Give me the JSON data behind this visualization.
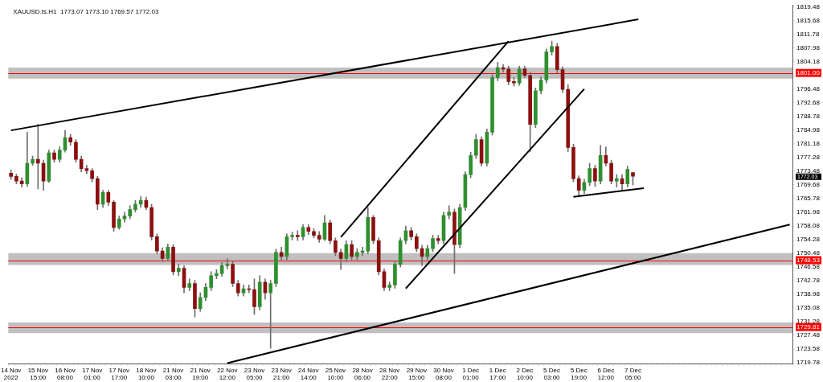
{
  "chart_data": {
    "type": "candlestick",
    "title": "XAUUSD.ts.H1  1773.07 1773.10 1769.57 1772.03",
    "categories": [
      "14 Nov 2022",
      null,
      null,
      null,
      null,
      "15 Nov 15:00",
      null,
      null,
      null,
      null,
      "16 Nov 08:00",
      null,
      null,
      null,
      null,
      "17 Nov 01:00",
      null,
      null,
      null,
      null,
      "17 Nov 17:00",
      null,
      null,
      null,
      null,
      "18 Nov 10:00",
      null,
      null,
      null,
      null,
      "21 Nov 03:00",
      null,
      null,
      null,
      null,
      "21 Nov 19:00",
      null,
      null,
      null,
      null,
      "22 Nov 12:00",
      null,
      null,
      null,
      null,
      "23 Nov 05:00",
      null,
      null,
      null,
      null,
      "23 Nov 21:00",
      null,
      null,
      null,
      null,
      "24 Nov 14:00",
      null,
      null,
      null,
      null,
      "25 Nov 10:00",
      null,
      null,
      null,
      null,
      "28 Nov 06:00",
      null,
      null,
      null,
      null,
      "28 Nov 22:00",
      null,
      null,
      null,
      null,
      "29 Nov 15:00",
      null,
      null,
      null,
      null,
      "30 Nov 08:00",
      null,
      null,
      null,
      null,
      "1 Dec 01:00",
      null,
      null,
      null,
      null,
      "1 Dec 17:00",
      null,
      null,
      null,
      null,
      "2 Dec 10:00",
      null,
      null,
      null,
      null,
      "5 Dec 03:00",
      null,
      null,
      null,
      null,
      "5 Dec 19:00",
      null,
      null,
      null,
      null,
      "6 Dec 12:00",
      null,
      null,
      null,
      null,
      "7 Dec 05:00",
      null,
      null,
      null,
      null,
      null,
      null,
      null,
      null,
      null,
      null,
      null,
      null,
      null,
      null,
      null,
      null,
      null,
      null,
      null,
      null,
      null,
      null,
      null,
      null,
      null,
      null,
      null,
      null,
      null
    ],
    "ohlc": [
      [
        1772.9,
        1773.8,
        1771.2,
        1772.0
      ],
      [
        1772.0,
        1772.7,
        1769.9,
        1770.7
      ],
      [
        1770.7,
        1771.6,
        1769.0,
        1769.9
      ],
      [
        1769.9,
        1784.4,
        1769.2,
        1775.7
      ],
      [
        1775.7,
        1777.7,
        1775.1,
        1776.8
      ],
      [
        1776.8,
        1786.6,
        1768.5,
        1775.7
      ],
      [
        1775.7,
        1776.6,
        1768.1,
        1770.7
      ],
      [
        1770.7,
        1779.4,
        1770.3,
        1778.6
      ],
      [
        1778.6,
        1779.4,
        1776.0,
        1776.8
      ],
      [
        1776.8,
        1780.3,
        1776.0,
        1779.4
      ],
      [
        1779.4,
        1784.9,
        1778.8,
        1782.9
      ],
      [
        1782.9,
        1783.8,
        1780.7,
        1781.6
      ],
      [
        1781.6,
        1782.3,
        1776.0,
        1776.8
      ],
      [
        1776.8,
        1777.7,
        1773.3,
        1774.2
      ],
      [
        1774.2,
        1775.1,
        1772.7,
        1773.6
      ],
      [
        1773.6,
        1774.2,
        1770.5,
        1771.4
      ],
      [
        1771.4,
        1772.0,
        1762.7,
        1764.2
      ],
      [
        1764.2,
        1768.1,
        1763.3,
        1767.5
      ],
      [
        1767.5,
        1768.1,
        1763.8,
        1764.8
      ],
      [
        1764.8,
        1765.3,
        1756.6,
        1757.7
      ],
      [
        1757.7,
        1760.9,
        1757.2,
        1760.1
      ],
      [
        1760.1,
        1762.0,
        1759.2,
        1760.9
      ],
      [
        1760.9,
        1763.8,
        1760.1,
        1762.7
      ],
      [
        1762.7,
        1765.3,
        1762.0,
        1764.2
      ],
      [
        1764.2,
        1766.4,
        1763.3,
        1765.3
      ],
      [
        1765.3,
        1766.2,
        1762.7,
        1763.3
      ],
      [
        1763.3,
        1764.2,
        1754.2,
        1755.1
      ],
      [
        1755.1,
        1755.9,
        1750.3,
        1751.1
      ],
      [
        1751.1,
        1752.0,
        1748.1,
        1749.0
      ],
      [
        1749.0,
        1753.1,
        1748.3,
        1752.2
      ],
      [
        1752.2,
        1752.9,
        1744.4,
        1745.3
      ],
      [
        1745.3,
        1747.4,
        1744.2,
        1746.3
      ],
      [
        1746.3,
        1747.0,
        1739.4,
        1740.9
      ],
      [
        1740.9,
        1743.3,
        1740.0,
        1742.0
      ],
      [
        1742.0,
        1742.9,
        1732.6,
        1735.0
      ],
      [
        1735.0,
        1739.4,
        1734.2,
        1738.1
      ],
      [
        1738.1,
        1742.0,
        1737.2,
        1740.9
      ],
      [
        1740.9,
        1745.3,
        1740.0,
        1744.2
      ],
      [
        1744.2,
        1745.9,
        1743.3,
        1744.8
      ],
      [
        1744.8,
        1747.9,
        1744.0,
        1747.0
      ],
      [
        1747.0,
        1749.0,
        1746.1,
        1747.4
      ],
      [
        1747.4,
        1748.3,
        1741.1,
        1742.0
      ],
      [
        1742.0,
        1742.9,
        1738.5,
        1739.4
      ],
      [
        1739.4,
        1741.6,
        1738.5,
        1740.5
      ],
      [
        1740.5,
        1741.6,
        1739.4,
        1740.3
      ],
      [
        1740.3,
        1743.3,
        1733.3,
        1735.5
      ],
      [
        1735.5,
        1744.2,
        1734.6,
        1742.4
      ],
      [
        1742.4,
        1743.3,
        1737.6,
        1739.4
      ],
      [
        1739.4,
        1742.9,
        1723.9,
        1742.0
      ],
      [
        1742.0,
        1751.6,
        1741.1,
        1750.7
      ],
      [
        1750.7,
        1752.2,
        1748.7,
        1749.6
      ],
      [
        1749.6,
        1755.9,
        1748.7,
        1755.1
      ],
      [
        1755.1,
        1756.4,
        1754.2,
        1755.5
      ],
      [
        1755.5,
        1756.8,
        1754.0,
        1755.1
      ],
      [
        1755.1,
        1758.5,
        1754.2,
        1757.7
      ],
      [
        1757.7,
        1758.5,
        1755.7,
        1756.6
      ],
      [
        1756.6,
        1757.4,
        1754.8,
        1755.5
      ],
      [
        1755.5,
        1756.6,
        1753.5,
        1754.4
      ],
      [
        1754.4,
        1761.1,
        1754.0,
        1759.0
      ],
      [
        1759.0,
        1759.8,
        1753.1,
        1754.0
      ],
      [
        1754.0,
        1754.8,
        1749.8,
        1750.7
      ],
      [
        1750.7,
        1751.6,
        1745.9,
        1749.0
      ],
      [
        1749.0,
        1754.0,
        1748.1,
        1752.9
      ],
      [
        1752.9,
        1754.0,
        1748.7,
        1749.6
      ],
      [
        1749.6,
        1751.8,
        1748.7,
        1750.7
      ],
      [
        1750.7,
        1752.2,
        1749.8,
        1751.1
      ],
      [
        1751.1,
        1763.3,
        1750.3,
        1760.5
      ],
      [
        1760.5,
        1761.1,
        1753.1,
        1754.0
      ],
      [
        1754.0,
        1754.8,
        1744.4,
        1745.3
      ],
      [
        1745.3,
        1746.1,
        1740.0,
        1740.9
      ],
      [
        1740.9,
        1742.4,
        1740.0,
        1741.6
      ],
      [
        1741.6,
        1748.3,
        1740.7,
        1747.4
      ],
      [
        1747.4,
        1754.8,
        1746.6,
        1754.0
      ],
      [
        1754.0,
        1758.1,
        1753.1,
        1756.8
      ],
      [
        1756.8,
        1757.7,
        1754.2,
        1755.1
      ],
      [
        1755.1,
        1755.9,
        1750.9,
        1751.8
      ],
      [
        1751.8,
        1752.7,
        1747.0,
        1749.6
      ],
      [
        1749.6,
        1752.7,
        1748.7,
        1751.8
      ],
      [
        1751.8,
        1755.5,
        1750.9,
        1754.6
      ],
      [
        1754.6,
        1755.5,
        1753.1,
        1754.0
      ],
      [
        1754.0,
        1762.0,
        1753.1,
        1761.1
      ],
      [
        1761.1,
        1763.8,
        1760.1,
        1762.0
      ],
      [
        1762.0,
        1762.9,
        1744.8,
        1752.9
      ],
      [
        1752.9,
        1764.2,
        1752.0,
        1763.3
      ],
      [
        1763.3,
        1773.3,
        1762.5,
        1772.5
      ],
      [
        1772.5,
        1778.8,
        1771.6,
        1777.9
      ],
      [
        1777.9,
        1783.8,
        1777.0,
        1782.3
      ],
      [
        1782.3,
        1783.1,
        1774.9,
        1775.7
      ],
      [
        1775.7,
        1785.3,
        1774.9,
        1784.4
      ],
      [
        1784.4,
        1800.5,
        1783.6,
        1799.7
      ],
      [
        1799.7,
        1804.0,
        1798.8,
        1802.5
      ],
      [
        1802.5,
        1803.4,
        1801.2,
        1802.1
      ],
      [
        1802.1,
        1802.9,
        1797.7,
        1798.6
      ],
      [
        1798.6,
        1799.7,
        1797.3,
        1798.2
      ],
      [
        1798.2,
        1802.9,
        1797.5,
        1802.1
      ],
      [
        1802.1,
        1802.9,
        1799.7,
        1800.3
      ],
      [
        1800.3,
        1801.2,
        1779.0,
        1786.6
      ],
      [
        1786.6,
        1796.8,
        1785.7,
        1796.0
      ],
      [
        1796.0,
        1799.9,
        1795.1,
        1799.0
      ],
      [
        1799.0,
        1807.7,
        1798.2,
        1806.9
      ],
      [
        1806.9,
        1809.9,
        1806.0,
        1808.4
      ],
      [
        1808.4,
        1809.3,
        1801.0,
        1801.9
      ],
      [
        1801.9,
        1802.7,
        1795.5,
        1796.4
      ],
      [
        1796.4,
        1797.7,
        1779.0,
        1780.1
      ],
      [
        1780.1,
        1781.0,
        1770.5,
        1771.4
      ],
      [
        1771.4,
        1772.2,
        1766.4,
        1768.1
      ],
      [
        1768.1,
        1771.2,
        1767.2,
        1770.3
      ],
      [
        1770.3,
        1775.7,
        1769.4,
        1774.2
      ],
      [
        1774.2,
        1775.1,
        1769.2,
        1770.7
      ],
      [
        1770.7,
        1780.7,
        1769.9,
        1777.9
      ],
      [
        1777.9,
        1780.3,
        1774.9,
        1775.7
      ],
      [
        1775.7,
        1776.6,
        1769.9,
        1770.7
      ],
      [
        1770.7,
        1772.5,
        1769.0,
        1771.4
      ],
      [
        1771.4,
        1772.5,
        1768.1,
        1769.9
      ],
      [
        1769.9,
        1774.9,
        1769.0,
        1774.0
      ],
      [
        1773.07,
        1773.1,
        1769.57,
        1772.03
      ],
      null,
      null,
      null,
      null,
      null,
      null,
      null,
      null,
      null,
      null,
      null,
      null,
      null,
      null,
      null,
      null,
      null,
      null,
      null,
      null,
      null,
      null,
      null,
      null,
      null,
      null,
      null,
      null,
      null
    ],
    "series": [
      {
        "type": "line",
        "color": "#000000",
        "values": [
          1784.9,
          null,
          null,
          null,
          null,
          null,
          null,
          null,
          null,
          null,
          null,
          null,
          null,
          null,
          null,
          null,
          null,
          null,
          null,
          null,
          null,
          null,
          null,
          null,
          null,
          null,
          null,
          null,
          null,
          null,
          null,
          null,
          null,
          null,
          null,
          null,
          null,
          null,
          null,
          null,
          null,
          null,
          null,
          null,
          null,
          null,
          null,
          null,
          null,
          null,
          null,
          null,
          null,
          null,
          null,
          null,
          null,
          null,
          null,
          null,
          null,
          null,
          null,
          null,
          null,
          null,
          null,
          null,
          null,
          null,
          null,
          null,
          null,
          null,
          null,
          null,
          null,
          null,
          null,
          null,
          null,
          null,
          null,
          null,
          null,
          null,
          null,
          null,
          null,
          null,
          null,
          null,
          null,
          null,
          null,
          null,
          null,
          null,
          null,
          null,
          null,
          null,
          null,
          null,
          null,
          null,
          null,
          null,
          null,
          null,
          null,
          null,
          null,
          null,
          null,
          null,
          1816.0,
          null,
          null,
          null,
          null,
          null,
          null,
          null,
          null,
          null,
          null,
          null,
          null,
          null,
          null,
          null,
          null,
          null,
          null,
          null,
          null,
          null,
          null,
          null,
          null,
          null,
          null,
          null,
          null
        ]
      },
      {
        "type": "line",
        "color": "#000000",
        "values": [
          null,
          null,
          null,
          null,
          null,
          null,
          null,
          null,
          null,
          null,
          null,
          null,
          null,
          null,
          null,
          null,
          null,
          null,
          null,
          null,
          null,
          null,
          null,
          null,
          null,
          null,
          null,
          null,
          null,
          null,
          null,
          null,
          null,
          null,
          null,
          null,
          null,
          null,
          null,
          null,
          1719.7,
          null,
          null,
          null,
          null,
          null,
          null,
          null,
          null,
          null,
          null,
          null,
          null,
          null,
          null,
          null,
          null,
          null,
          null,
          null,
          null,
          null,
          null,
          null,
          null,
          null,
          null,
          null,
          null,
          null,
          null,
          null,
          null,
          null,
          null,
          null,
          null,
          null,
          null,
          null,
          null,
          null,
          null,
          null,
          null,
          null,
          null,
          null,
          null,
          null,
          null,
          null,
          null,
          null,
          null,
          null,
          null,
          null,
          null,
          null,
          null,
          null,
          null,
          null,
          null,
          null,
          null,
          null,
          null,
          null,
          null,
          null,
          null,
          null,
          null,
          null,
          null,
          null,
          null,
          null,
          null,
          null,
          null,
          null,
          null,
          null,
          null,
          null,
          null,
          null,
          null,
          null,
          null,
          null,
          null,
          null,
          null,
          null,
          null,
          null,
          null,
          null,
          null,
          null,
          1758.5
        ]
      },
      {
        "type": "line",
        "color": "#000000",
        "values": [
          null,
          null,
          null,
          null,
          null,
          null,
          null,
          null,
          null,
          null,
          null,
          null,
          null,
          null,
          null,
          null,
          null,
          null,
          null,
          null,
          null,
          null,
          null,
          null,
          null,
          null,
          null,
          null,
          null,
          null,
          null,
          null,
          null,
          null,
          null,
          null,
          null,
          null,
          null,
          null,
          null,
          null,
          null,
          null,
          null,
          null,
          null,
          null,
          null,
          null,
          null,
          null,
          null,
          null,
          null,
          null,
          null,
          null,
          null,
          null,
          null,
          1755.0,
          null,
          null,
          null,
          null,
          null,
          null,
          null,
          null,
          null,
          null,
          null,
          null,
          null,
          null,
          null,
          null,
          null,
          null,
          null,
          null,
          null,
          null,
          null,
          null,
          null,
          null,
          null,
          null,
          null,
          null,
          1809.9,
          null,
          null,
          null,
          null,
          null,
          null,
          null,
          null,
          null,
          null,
          null,
          null,
          null,
          null,
          null,
          null,
          null,
          null,
          null,
          null,
          null,
          null,
          null,
          null,
          null,
          null,
          null,
          null,
          null,
          null,
          null,
          null,
          null,
          null,
          null,
          null,
          null,
          null,
          null,
          null,
          null,
          null,
          null,
          null,
          null,
          null,
          null,
          null,
          null,
          null,
          null,
          null
        ]
      },
      {
        "type": "line",
        "color": "#000000",
        "values": [
          null,
          null,
          null,
          null,
          null,
          null,
          null,
          null,
          null,
          null,
          null,
          null,
          null,
          null,
          null,
          null,
          null,
          null,
          null,
          null,
          null,
          null,
          null,
          null,
          null,
          null,
          null,
          null,
          null,
          null,
          null,
          null,
          null,
          null,
          null,
          null,
          null,
          null,
          null,
          null,
          null,
          null,
          null,
          null,
          null,
          null,
          null,
          null,
          null,
          null,
          null,
          null,
          null,
          null,
          null,
          null,
          null,
          null,
          null,
          null,
          null,
          null,
          null,
          null,
          null,
          null,
          null,
          null,
          null,
          null,
          null,
          null,
          null,
          1740.6,
          null,
          null,
          null,
          null,
          null,
          null,
          null,
          null,
          null,
          null,
          null,
          null,
          null,
          null,
          null,
          null,
          null,
          null,
          null,
          null,
          null,
          null,
          null,
          null,
          null,
          null,
          null,
          null,
          null,
          null,
          null,
          null,
          1796.5,
          null,
          null,
          null,
          null,
          null,
          null,
          null,
          null,
          null,
          null,
          null,
          null,
          null,
          null,
          null,
          null,
          null,
          null,
          null,
          null,
          null,
          null,
          null,
          null,
          null,
          null,
          null,
          null,
          null,
          null,
          null,
          null,
          null,
          null,
          null,
          null,
          null,
          null
        ]
      },
      {
        "type": "line",
        "color": "#000000",
        "values": [
          null,
          null,
          null,
          null,
          null,
          null,
          null,
          null,
          null,
          null,
          null,
          null,
          null,
          null,
          null,
          null,
          null,
          null,
          null,
          null,
          null,
          null,
          null,
          null,
          null,
          null,
          null,
          null,
          null,
          null,
          null,
          null,
          null,
          null,
          null,
          null,
          null,
          null,
          null,
          null,
          null,
          null,
          null,
          null,
          null,
          null,
          null,
          null,
          null,
          null,
          null,
          null,
          null,
          null,
          null,
          null,
          null,
          null,
          null,
          null,
          null,
          null,
          null,
          null,
          null,
          null,
          null,
          null,
          null,
          null,
          null,
          null,
          null,
          null,
          null,
          null,
          null,
          null,
          null,
          null,
          null,
          null,
          null,
          null,
          null,
          null,
          null,
          null,
          null,
          null,
          null,
          null,
          null,
          null,
          null,
          null,
          null,
          null,
          null,
          null,
          null,
          null,
          null,
          null,
          1766.3,
          null,
          null,
          null,
          null,
          null,
          null,
          null,
          null,
          null,
          null,
          null,
          null,
          1768.7,
          null,
          null,
          null,
          null,
          null,
          null,
          null,
          null,
          null,
          null,
          null,
          null,
          null,
          null,
          null,
          null,
          null,
          null,
          null,
          null,
          null,
          null,
          null,
          null,
          null,
          null,
          null
        ]
      }
    ],
    "ylim": [
      1719.5,
      1819.9
    ],
    "yticks": [
      1719.78,
      1723.58,
      1727.48,
      1731.28,
      1735.08,
      1738.98,
      1742.78,
      1746.58,
      1750.48,
      1754.28,
      1758.08,
      1761.98,
      1765.78,
      1769.68,
      1773.48,
      1777.28,
      1781.18,
      1784.98,
      1788.78,
      1792.68,
      1796.48,
      {
        "value": 1800.28,
        "label": null
      },
      1804.18,
      1807.98,
      1811.78,
      1815.68,
      1819.48
    ],
    "bands": [
      {
        "axis": "y",
        "from": 1799.4,
        "to": 1802.5,
        "color": "#c0c0c0"
      },
      {
        "axis": "y",
        "from": 1747.2,
        "to": 1750.5,
        "color": "#c0c0c0"
      },
      {
        "axis": "y",
        "from": 1728.1,
        "to": 1731.1,
        "color": "#c0c0c0"
      }
    ],
    "ref_lines": [
      {
        "axis": "y",
        "value": 1801.0,
        "label": "1801.00",
        "color": "#ff0000"
      },
      {
        "axis": "y",
        "value": 1748.53,
        "label": "1748.53",
        "color": "#ff0000"
      },
      {
        "axis": "y",
        "value": 1729.81,
        "label": "1729.81",
        "color": "#ff0000"
      }
    ],
    "annotations": [
      "1772.03"
    ]
  }
}
